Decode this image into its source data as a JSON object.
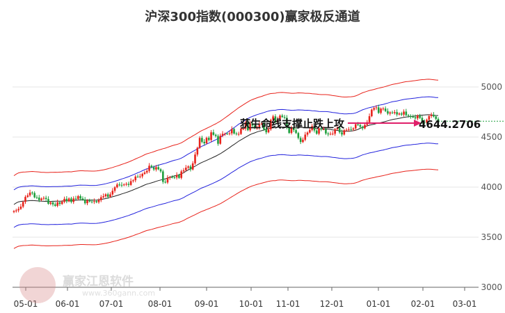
{
  "chart_data": {
    "type": "candlestick",
    "title": "沪深300指数(000300)赢家极反通道",
    "ylim": [
      3000,
      5200
    ],
    "yticks": [
      3000,
      3500,
      4000,
      4500,
      5000
    ],
    "xtick_labels": [
      "05-01",
      "06-01",
      "07-01",
      "08-01",
      "09-01",
      "10-01",
      "11-01",
      "12-01",
      "01-01",
      "02-01",
      "03-01"
    ],
    "last_price": 4644.2706,
    "last_price_label": "4644.2706",
    "annotation": "获生命线支撑止跌上攻",
    "candle_closes": [
      3760,
      3768,
      3782,
      3805,
      3852,
      3902,
      3917,
      3946,
      3941,
      3898,
      3895,
      3870,
      3885,
      3892,
      3881,
      3834,
      3847,
      3827,
      3813,
      3848,
      3832,
      3853,
      3883,
      3859,
      3886,
      3852,
      3886,
      3882,
      3910,
      3886,
      3874,
      3839,
      3867,
      3856,
      3852,
      3860,
      3849,
      3870,
      3899,
      3909,
      3928,
      3903,
      3927,
      3963,
      3998,
      4026,
      4022,
      4019,
      4026,
      4032,
      4022,
      4060,
      4068,
      4105,
      4103,
      4107,
      4132,
      4146,
      4162,
      4213,
      4199,
      4176,
      4199,
      4178,
      4157,
      4052,
      4046,
      4092,
      4100,
      4097,
      4096,
      4121,
      4092,
      4157,
      4168,
      4194,
      4206,
      4176,
      4237,
      4325,
      4392,
      4491,
      4452,
      4437,
      4492,
      4470,
      4547,
      4522,
      4510,
      4433,
      4513,
      4532,
      4533,
      4532,
      4537,
      4580,
      4535,
      4530,
      4531,
      4583,
      4583,
      4646,
      4568,
      4635,
      4614,
      4588,
      4592,
      4628,
      4636,
      4576,
      4547,
      4577,
      4671,
      4706,
      4646,
      4676,
      4714,
      4700,
      4692,
      4597,
      4541,
      4596,
      4569,
      4540,
      4490,
      4450,
      4473,
      4524,
      4545,
      4571,
      4609,
      4565,
      4533,
      4586,
      4578,
      4578,
      4535,
      4527,
      4532,
      4533,
      4578,
      4591,
      4547,
      4525,
      4568,
      4572,
      4578,
      4574,
      4586,
      4628,
      4620,
      4602,
      4587,
      4621,
      4648,
      4708,
      4773,
      4789,
      4796,
      4741,
      4783,
      4784,
      4759,
      4734,
      4746,
      4739,
      4749,
      4725,
      4735,
      4724,
      4754,
      4718,
      4710,
      4703,
      4698,
      4686,
      4714,
      4691,
      4649,
      4645,
      4672,
      4709,
      4722,
      4705,
      4681,
      4644
    ]
  }
}
